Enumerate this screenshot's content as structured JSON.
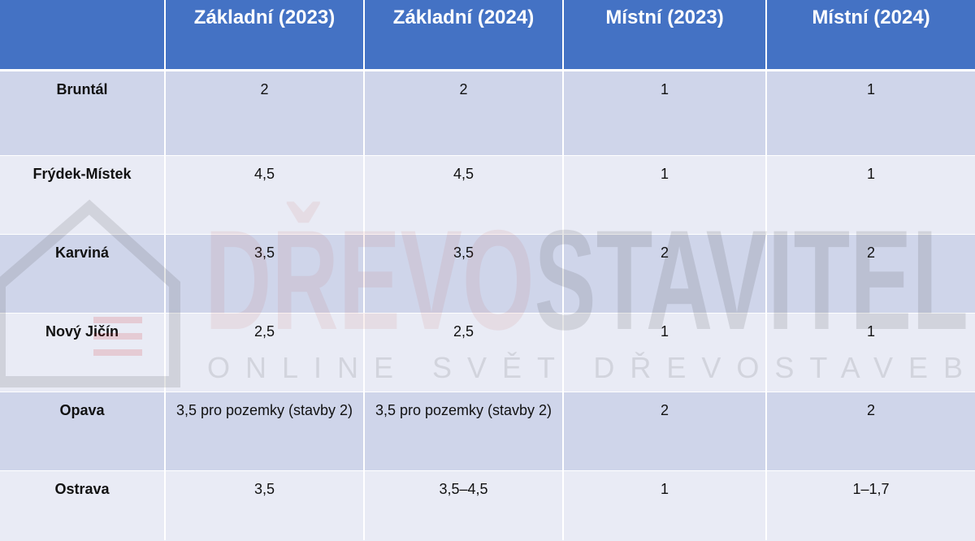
{
  "table": {
    "header": [
      "Základní (2023)",
      "Základní (2024)",
      "Místní (2023)",
      "Místní (2024)"
    ],
    "rows": [
      [
        "Bruntál",
        "2",
        "2",
        "1",
        "1"
      ],
      [
        "Frýdek-Místek",
        "4,5",
        "4,5",
        "1",
        "1"
      ],
      [
        "Karviná",
        "3,5",
        "3,5",
        "2",
        "2"
      ],
      [
        "Nový Jičín",
        "2,5",
        "2,5",
        "1",
        "1"
      ],
      [
        "Opava",
        "3,5 pro pozemky (stavby 2)",
        "3,5 pro pozemky (stavby 2)",
        "2",
        "2"
      ],
      [
        "Ostrava",
        "3,5",
        "3,5–4,5",
        "1",
        "1–1,7"
      ]
    ]
  },
  "watermark": {
    "brand": [
      "DŘEVO",
      "STAVITEL"
    ],
    "tagline": "ONLINE SVĚT DŘEVOSTAVEB"
  }
}
